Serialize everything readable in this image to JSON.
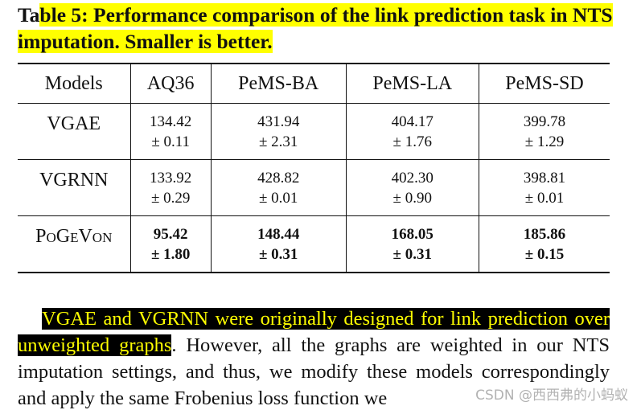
{
  "caption": {
    "plain": "Ta",
    "highlighted": "ble 5: Performance comparison of the link prediction task in NTS imputation. Smaller is better."
  },
  "table": {
    "header": [
      "Models",
      "AQ36",
      "PeMS-BA",
      "PeMS-LA",
      "PeMS-SD"
    ],
    "rows": [
      {
        "model": "VGAE",
        "bold": false,
        "cells": [
          {
            "mean": "134.42",
            "std": "± 0.11"
          },
          {
            "mean": "431.94",
            "std": "± 2.31"
          },
          {
            "mean": "404.17",
            "std": "± 1.76"
          },
          {
            "mean": "399.78",
            "std": "± 1.29"
          }
        ]
      },
      {
        "model": "VGRNN",
        "bold": false,
        "cells": [
          {
            "mean": "133.92",
            "std": "± 0.29"
          },
          {
            "mean": "428.82",
            "std": "± 0.01"
          },
          {
            "mean": "402.30",
            "std": "± 0.90"
          },
          {
            "mean": "398.81",
            "std": "± 0.01"
          }
        ]
      },
      {
        "model": "PoGeVon",
        "bold": true,
        "cells": [
          {
            "mean": "95.42",
            "std": "± 1.80"
          },
          {
            "mean": "148.44",
            "std": "± 0.31"
          },
          {
            "mean": "168.05",
            "std": "± 0.31"
          },
          {
            "mean": "185.86",
            "std": "± 0.15"
          }
        ]
      }
    ]
  },
  "paragraph": {
    "highlighted": "VGAE and VGRNN were originally designed for link prediction over unweighted graphs",
    "rest": ". However, all the graphs are weighted in our NTS imputation settings, and thus, we modify these models correspondingly and apply the same Frobenius loss function we"
  },
  "watermark": "CSDN @西西弗的小蚂蚁"
}
